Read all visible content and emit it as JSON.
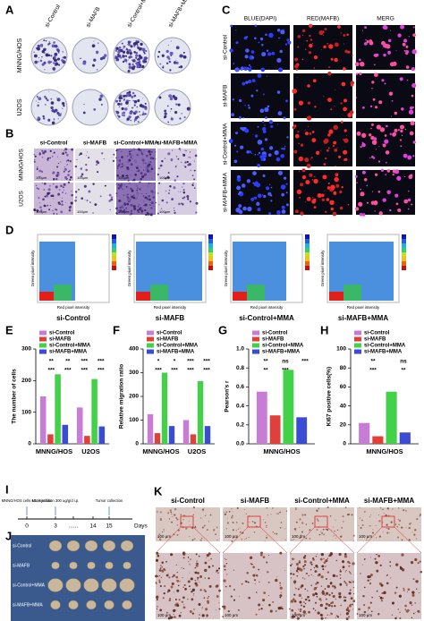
{
  "panel_letters": [
    "A",
    "B",
    "C",
    "D",
    "E",
    "F",
    "G",
    "H",
    "I",
    "J",
    "K"
  ],
  "panel_a": {
    "columns": [
      "si-Control",
      "si-MAFB",
      "si-Control+MMA",
      "si-MAFB+MMA"
    ],
    "rows": [
      "MNNG/HOS",
      "U2OS"
    ]
  },
  "panel_b": {
    "columns": [
      "si-Control",
      "si-MAFB",
      "si-Control+MMA",
      "si-MAFB+MMA"
    ],
    "rows": [
      "MNNG/HOS",
      "U2OS"
    ],
    "scale": "100μm"
  },
  "panel_c": {
    "columns": [
      "BLUE(DAPI)",
      "RED(MAFB)",
      "MERG"
    ],
    "rows": [
      "si-Control",
      "si-MAFB",
      "si-Control+MMA",
      "si-MAFB+MMA"
    ]
  },
  "panel_d": {
    "labels": [
      "si-Control",
      "si-MAFB",
      "si-Control+MMA",
      "si-MAFB+MMA"
    ],
    "y_label": "Green pixel intensity",
    "x_label": "Red pixel intensity"
  },
  "chart_data": [
    {
      "type": "bar",
      "y_label": "The number of cells",
      "categories": [
        "MNNG/HOS",
        "U2OS"
      ],
      "series": [
        {
          "name": "si-Control",
          "color": "#c77dd6",
          "values": [
            150,
            115
          ]
        },
        {
          "name": "si-MAFB",
          "color": "#e0403a",
          "values": [
            30,
            25
          ]
        },
        {
          "name": "si-Control+MMA",
          "color": "#44d14a",
          "values": [
            220,
            205
          ]
        },
        {
          "name": "si-MAFB+MMA",
          "color": "#3a4bd6",
          "values": [
            60,
            55
          ]
        }
      ],
      "ylim": [
        0,
        300
      ],
      "yticks": [
        0,
        100,
        200,
        300
      ],
      "annotations": [
        "**",
        "**",
        "***",
        "***",
        "***",
        "***",
        "***",
        "***"
      ]
    },
    {
      "type": "bar",
      "y_label": "Relative migration ratio",
      "categories": [
        "MNNG/HOS",
        "U2OS"
      ],
      "series": [
        {
          "name": "si-Control",
          "color": "#c77dd6",
          "values": [
            125,
            100
          ]
        },
        {
          "name": "si-MAFB",
          "color": "#e0403a",
          "values": [
            45,
            40
          ]
        },
        {
          "name": "si-Control+MMA",
          "color": "#44d14a",
          "values": [
            300,
            265
          ]
        },
        {
          "name": "si-MAFB+MMA",
          "color": "#3a4bd6",
          "values": [
            75,
            75
          ]
        }
      ],
      "ylim": [
        0,
        400
      ],
      "yticks": [
        0,
        100,
        200,
        300,
        400
      ],
      "annotations": [
        "*",
        "*",
        "***",
        "***",
        "***",
        "***",
        "***",
        "***"
      ]
    },
    {
      "type": "bar",
      "y_label": "Pearson's r",
      "categories": [
        "MNNG/HOS"
      ],
      "series": [
        {
          "name": "si-Control",
          "color": "#c77dd6",
          "values": [
            0.55
          ]
        },
        {
          "name": "si-MAFB",
          "color": "#e0403a",
          "values": [
            0.3
          ]
        },
        {
          "name": "si-Control+MMA",
          "color": "#44d14a",
          "values": [
            0.78
          ]
        },
        {
          "name": "si-MAFB+MMA",
          "color": "#3a4bd6",
          "values": [
            0.28
          ]
        }
      ],
      "ylim": [
        0,
        1
      ],
      "yticks": [
        {
          "value": 0,
          "label": "0.0"
        },
        0.2,
        0.4,
        0.6,
        0.8,
        {
          "value": 1,
          "label": "1.0"
        }
      ],
      "annotations": [
        "**",
        "ns",
        "***",
        "**",
        "***"
      ]
    },
    {
      "type": "bar",
      "y_label": "Ki67 positive cells(%)",
      "categories": [
        "MNNG/HOS"
      ],
      "series": [
        {
          "name": "si-Control",
          "color": "#c77dd6",
          "values": [
            22
          ]
        },
        {
          "name": "si-MAFB",
          "color": "#e0403a",
          "values": [
            8
          ]
        },
        {
          "name": "si-Control+MMA",
          "color": "#44d14a",
          "values": [
            55
          ]
        },
        {
          "name": "si-MAFB+MMA",
          "color": "#3a4bd6",
          "values": [
            12
          ]
        }
      ],
      "ylim": [
        0,
        100
      ],
      "yticks": [
        0,
        20,
        40,
        60,
        80,
        100
      ],
      "annotations": [
        "**",
        "ns",
        "***",
        "**"
      ]
    }
  ],
  "panel_i": {
    "steps": [
      "MNNG/HOS cells s.c. injection",
      "MMA solution 300 ug/g/d i.p.",
      "Tumor collection"
    ],
    "ticks": [
      "0",
      "3",
      "......",
      "14",
      "15"
    ],
    "unit": "Days"
  },
  "panel_j": {
    "rows": [
      "si-Control",
      "si-MAFB",
      "si-Control+MMA",
      "si-MAFB+MMA"
    ]
  },
  "panel_k": {
    "columns": [
      "si-Control",
      "si-MAFB",
      "si-Control+MMA",
      "si-MAFB+MMA"
    ],
    "scale": "100 μm"
  }
}
